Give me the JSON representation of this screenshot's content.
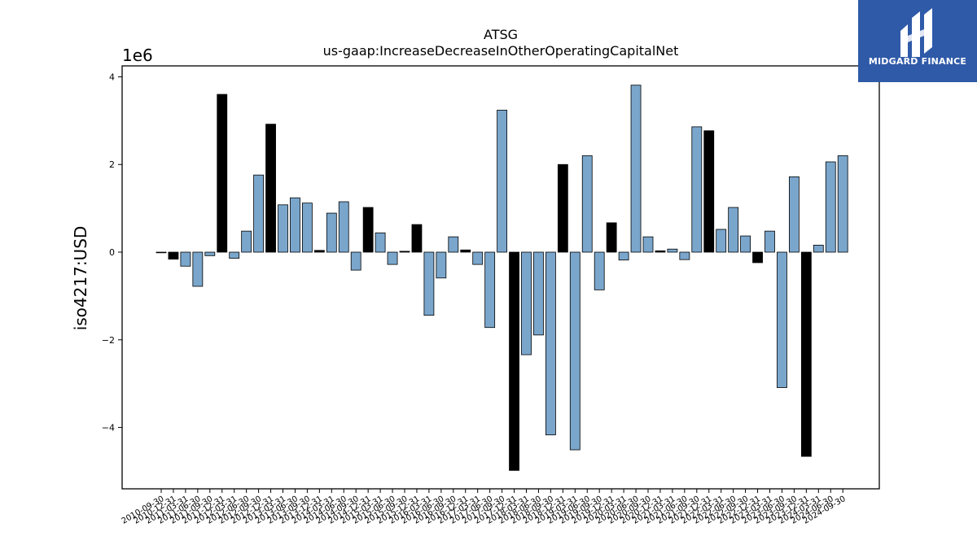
{
  "brand": {
    "name": "MIDGARD FINANCE",
    "logo_icon": "midgard-logo-icon",
    "background": "#2f5aa8"
  },
  "chart_data": {
    "type": "bar",
    "title": "ATSG",
    "subtitle": "us-gaap:IncreaseDecreaseInOtherOperatingCapitalNet",
    "ylabel": "iso4217:USD",
    "xlabel": "",
    "scale_label": "1e6",
    "ylim": [
      -5.4,
      4.25
    ],
    "yticks": [
      4,
      2,
      0,
      -2,
      -4
    ],
    "ytick_labels": [
      "4",
      "2",
      "0",
      "−2",
      "−4"
    ],
    "grid": false,
    "legend": "none",
    "colors": {
      "default": "#7aa6cc",
      "highlight": "#000000",
      "edge": "#000000"
    },
    "categories": [
      "2010-09-30",
      "2010-12-31",
      "2011-03-31",
      "2011-06-30",
      "2011-09-30",
      "2011-12-31",
      "2012-03-31",
      "2012-06-30",
      "2012-09-30",
      "2012-12-31",
      "2013-03-31",
      "2013-06-30",
      "2013-09-30",
      "2013-12-31",
      "2014-03-31",
      "2014-06-30",
      "2014-09-30",
      "2014-12-31",
      "2015-03-31",
      "2015-06-30",
      "2015-09-30",
      "2015-12-31",
      "2016-03-31",
      "2016-06-30",
      "2016-09-30",
      "2016-12-31",
      "2017-03-31",
      "2017-06-30",
      "2017-09-30",
      "2017-12-31",
      "2018-03-31",
      "2018-06-30",
      "2018-09-30",
      "2018-12-31",
      "2019-03-31",
      "2019-06-30",
      "2019-09-30",
      "2019-12-31",
      "2020-03-31",
      "2020-06-30",
      "2020-09-30",
      "2020-12-31",
      "2021-03-31",
      "2021-06-30",
      "2021-09-30",
      "2021-12-31",
      "2022-03-31",
      "2022-06-30",
      "2022-09-30",
      "2022-12-31",
      "2023-03-31",
      "2023-06-30",
      "2023-09-30",
      "2023-12-31",
      "2024-03-31",
      "2024-06-30",
      "2024-09-30"
    ],
    "values": [
      0.0,
      -0.16,
      -0.32,
      -0.78,
      -0.08,
      3.6,
      -0.14,
      0.48,
      1.76,
      2.92,
      1.08,
      1.24,
      1.12,
      0.04,
      0.89,
      1.15,
      -0.41,
      1.02,
      0.44,
      -0.28,
      0.02,
      0.63,
      -1.44,
      -0.59,
      0.35,
      0.05,
      -0.28,
      -1.72,
      3.24,
      -4.98,
      -2.34,
      -1.89,
      -4.17,
      2.0,
      -4.51,
      2.2,
      -0.86,
      0.67,
      -0.18,
      3.81,
      0.35,
      0.03,
      0.07,
      -0.17,
      2.86,
      2.77,
      0.52,
      1.02,
      0.37,
      -0.24,
      0.48,
      -3.09,
      1.72,
      -4.66,
      0.16,
      2.06,
      2.2
    ],
    "highlight": [
      false,
      true,
      false,
      false,
      false,
      true,
      false,
      false,
      false,
      true,
      false,
      false,
      false,
      true,
      false,
      false,
      false,
      true,
      false,
      false,
      true,
      true,
      false,
      false,
      false,
      true,
      false,
      false,
      false,
      true,
      false,
      false,
      false,
      true,
      false,
      false,
      false,
      true,
      false,
      false,
      false,
      true,
      false,
      false,
      false,
      true,
      false,
      false,
      false,
      true,
      false,
      false,
      false,
      true,
      false,
      false,
      false
    ]
  }
}
